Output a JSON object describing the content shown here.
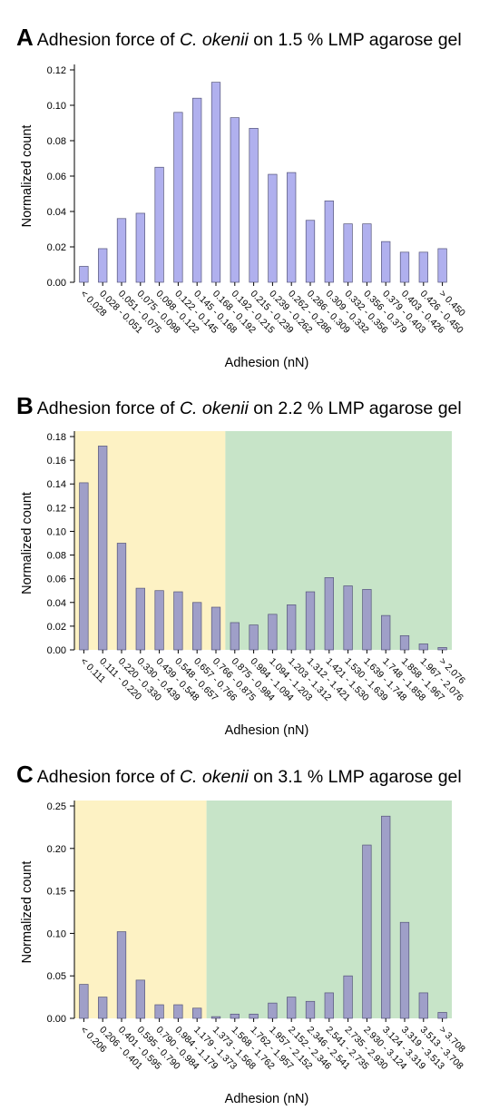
{
  "chart_data": [
    {
      "type": "bar",
      "panel_letter": "A",
      "title_pre": "Adhesion force of ",
      "title_species": "C. okenii",
      "title_post": " on 1.5 % LMP agarose gel",
      "xlabel": "Adhesion (nN)",
      "ylabel": "Normalized count",
      "ylim": [
        0,
        0.12
      ],
      "yticks": [
        "0.00",
        "0.02",
        "0.04",
        "0.06",
        "0.08",
        "0.10",
        "0.12"
      ],
      "categories": [
        "< 0.028",
        "0.028 - 0.051",
        "0.051 - 0.075",
        "0.075 - 0.098",
        "0.098 - 0.122",
        "0.122 - 0.145",
        "0.145 - 0.168",
        "0.168 - 0.192",
        "0.192 - 0.215",
        "0.215 - 0.239",
        "0.239 - 0.262",
        "0.262 - 0.286",
        "0.286 - 0.309",
        "0.309 - 0.332",
        "0.332 - 0.356",
        "0.356 - 0.379",
        "0.379 - 0.403",
        "0.403 - 0.426",
        "0.426 - 0.450",
        "> 0.450"
      ],
      "values": [
        0.009,
        0.019,
        0.036,
        0.039,
        0.065,
        0.096,
        0.104,
        0.113,
        0.093,
        0.087,
        0.061,
        0.062,
        0.035,
        0.046,
        0.033,
        0.033,
        0.023,
        0.017,
        0.017,
        0.019
      ],
      "bar_color": "#b0b0ee",
      "bar_edge": "#55557a",
      "regions": []
    },
    {
      "type": "bar",
      "panel_letter": "B",
      "title_pre": "Adhesion force of ",
      "title_species": "C. okenii",
      "title_post": " on 2.2 % LMP agarose gel",
      "xlabel": "Adhesion (nN)",
      "ylabel": "Normalized count",
      "ylim": [
        0,
        0.18
      ],
      "yticks": [
        "0.00",
        "0.02",
        "0.04",
        "0.06",
        "0.08",
        "0.10",
        "0.12",
        "0.14",
        "0.16",
        "0.18"
      ],
      "categories": [
        "< 0.111",
        "0.111 - 0.220",
        "0.220 - 0.330",
        "0.330 - 0.439",
        "0.439 - 0.548",
        "0.548 - 0.657",
        "0.657 - 0.766",
        "0.766 - 0.875",
        "0.875 - 0.984",
        "0.984 - 1.094",
        "1.094 - 1.203",
        "1.203 - 1.312",
        "1.312 - 1.421",
        "1.421 - 1.530",
        "1.530 - 1.639",
        "1.639 - 1.748",
        "1.748 - 1.858",
        "1.858 - 1.967",
        "1.967 - 2.076",
        "> 2.076"
      ],
      "values": [
        0.141,
        0.172,
        0.09,
        0.052,
        0.05,
        0.049,
        0.04,
        0.036,
        0.023,
        0.021,
        0.03,
        0.038,
        0.049,
        0.061,
        0.054,
        0.051,
        0.029,
        0.012,
        0.005,
        0.002
      ],
      "bar_color": "#9f9fc8",
      "bar_edge": "#55557a",
      "regions": [
        {
          "from_index": 0,
          "to_index": 8,
          "color": "#fdf2c4"
        },
        {
          "from_index": 8,
          "to_index": 20,
          "color": "#c7e4c8"
        }
      ]
    },
    {
      "type": "bar",
      "panel_letter": "C",
      "title_pre": "Adhesion force of ",
      "title_species": "C. okenii",
      "title_post": " on 3.1 % LMP agarose gel",
      "xlabel": "Adhesion (nN)",
      "ylabel": "Normalized count",
      "ylim": [
        0,
        0.25
      ],
      "yticks": [
        "0.00",
        "0.05",
        "0.10",
        "0.15",
        "0.20",
        "0.25"
      ],
      "categories": [
        "< 0.206",
        "0.206 - 0.401",
        "0.401 - 0.595",
        "0.595 - 0.790",
        "0.790 - 0.984",
        "0.984 - 1.179",
        "1.179 - 1.373",
        "1.373 - 1.568",
        "1.568 - 1.762",
        "1.762 - 1.957",
        "1.957 - 2.152",
        "2.152 - 2.346",
        "2.346 - 2.541",
        "2.541 - 2.735",
        "2.735 - 2.930",
        "2.930 - 3.124",
        "3.124 - 3.319",
        "3.319 - 3.513",
        "3.513 - 3.708",
        "> 3.708"
      ],
      "values": [
        0.04,
        0.025,
        0.102,
        0.045,
        0.016,
        0.016,
        0.012,
        0.002,
        0.005,
        0.005,
        0.018,
        0.025,
        0.02,
        0.03,
        0.05,
        0.204,
        0.238,
        0.113,
        0.03,
        0.007
      ],
      "bar_color": "#9f9fc8",
      "bar_edge": "#55557a",
      "regions": [
        {
          "from_index": 0,
          "to_index": 7,
          "color": "#fdf2c4"
        },
        {
          "from_index": 7,
          "to_index": 20,
          "color": "#c7e4c8"
        }
      ]
    }
  ]
}
